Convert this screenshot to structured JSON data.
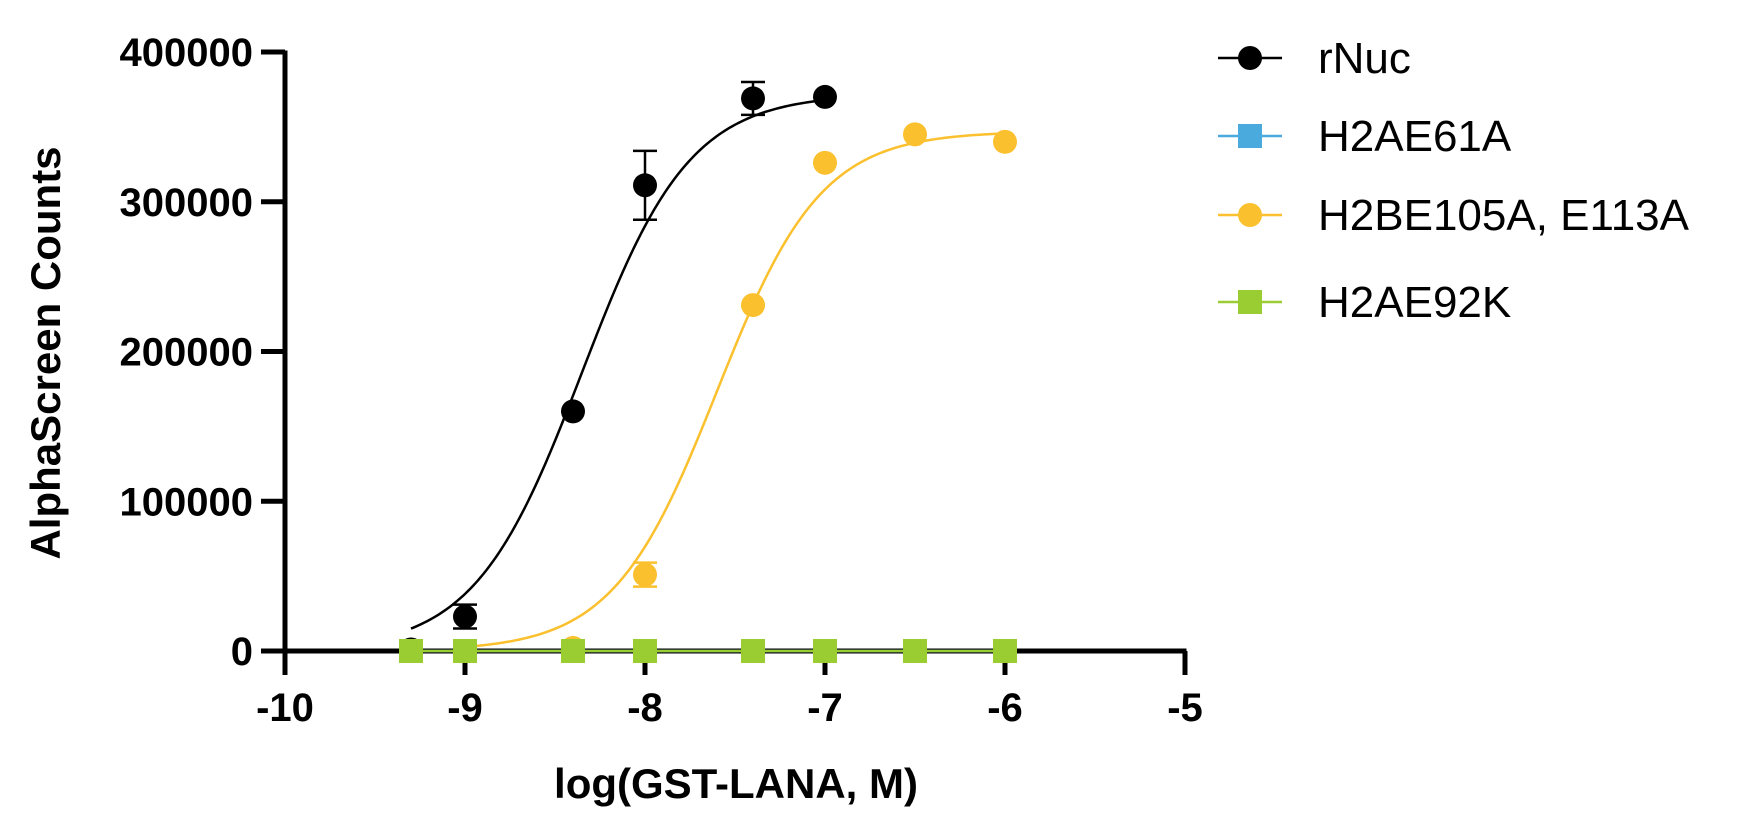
{
  "chart_data": {
    "type": "scatter",
    "title": "",
    "xlabel": "log(GST-LANA, M)",
    "ylabel": "AlphaScreen Counts",
    "xlim": [
      -10,
      -5
    ],
    "ylim": [
      0,
      400000
    ],
    "x_ticks": [
      -10,
      -9,
      -8,
      -7,
      -6,
      -5
    ],
    "y_ticks": [
      0,
      100000,
      200000,
      300000,
      400000
    ],
    "x_tick_labels": [
      "-10",
      "-9",
      "-8",
      "-7",
      "-6",
      "-5"
    ],
    "y_tick_labels": [
      "0",
      "100000",
      "200000",
      "300000",
      "400000"
    ],
    "grid": false,
    "legend_position": "right",
    "series": [
      {
        "name": "rNuc",
        "color": "#000000",
        "marker": "circle",
        "points": [
          {
            "x": -9.3,
            "y": 1000,
            "err": 0
          },
          {
            "x": -9.0,
            "y": 23000,
            "err": 8000
          },
          {
            "x": -8.4,
            "y": 160000,
            "err": 0
          },
          {
            "x": -8.0,
            "y": 311000,
            "err": 23000
          },
          {
            "x": -7.4,
            "y": 369000,
            "err": 11000
          },
          {
            "x": -7.0,
            "y": 370000,
            "err": 0
          }
        ],
        "fit": {
          "bottom": 0,
          "top": 372000,
          "log_ec50": -8.35,
          "hill": 1.45
        }
      },
      {
        "name": "H2AE61A",
        "color": "#4aaadd",
        "marker": "square",
        "points": [
          {
            "x": -9.3,
            "y": 0,
            "err": 0
          },
          {
            "x": -9.0,
            "y": 0,
            "err": 0
          },
          {
            "x": -8.4,
            "y": 0,
            "err": 0
          },
          {
            "x": -8.0,
            "y": 0,
            "err": 0
          },
          {
            "x": -7.4,
            "y": 0,
            "err": 0
          },
          {
            "x": -7.0,
            "y": 0,
            "err": 0
          },
          {
            "x": -6.5,
            "y": 0,
            "err": 0
          },
          {
            "x": -6.0,
            "y": 0,
            "err": 0
          }
        ],
        "fit": {
          "bottom": 0,
          "top": 0,
          "log_ec50": -8,
          "hill": 1
        }
      },
      {
        "name": "H2BE105A, E113A",
        "color": "#fbc02d",
        "marker": "circle",
        "points": [
          {
            "x": -9.0,
            "y": 0,
            "err": 0
          },
          {
            "x": -8.4,
            "y": 2000,
            "err": 0
          },
          {
            "x": -8.0,
            "y": 51000,
            "err": 8000
          },
          {
            "x": -7.4,
            "y": 231000,
            "err": 0
          },
          {
            "x": -7.0,
            "y": 326000,
            "err": 0
          },
          {
            "x": -6.5,
            "y": 345000,
            "err": 0
          },
          {
            "x": -6.0,
            "y": 340000,
            "err": 0
          }
        ],
        "fit": {
          "bottom": 0,
          "top": 347000,
          "log_ec50": -7.6,
          "hill": 1.5
        }
      },
      {
        "name": "H2AE92K",
        "color": "#9acd32",
        "marker": "square",
        "points": [
          {
            "x": -9.3,
            "y": 0,
            "err": 0
          },
          {
            "x": -9.0,
            "y": 0,
            "err": 0
          },
          {
            "x": -8.4,
            "y": 0,
            "err": 0
          },
          {
            "x": -8.0,
            "y": 0,
            "err": 0
          },
          {
            "x": -7.4,
            "y": 0,
            "err": 0
          },
          {
            "x": -7.0,
            "y": 0,
            "err": 0
          },
          {
            "x": -6.5,
            "y": 0,
            "err": 0
          },
          {
            "x": -6.0,
            "y": 0,
            "err": 0
          }
        ],
        "fit": {
          "bottom": 0,
          "top": 0,
          "log_ec50": -8,
          "hill": 1
        }
      }
    ]
  }
}
